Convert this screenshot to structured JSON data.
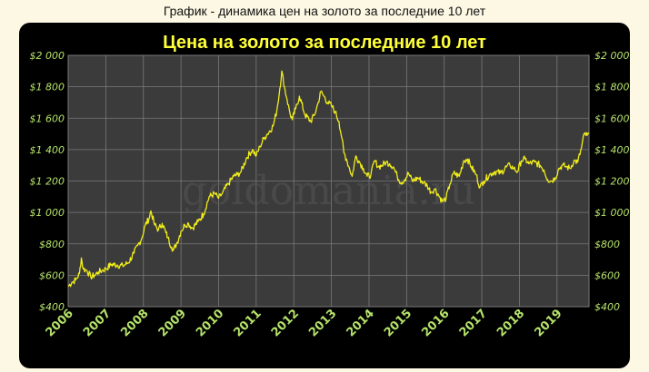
{
  "page": {
    "caption": "График - динамика цен на золото за последние 10 лет"
  },
  "watermark": "goldomania.ru",
  "colors": {
    "panel_bg": "#000000",
    "plot_bg": "#3b3b3b",
    "grid": "#7a7a7a",
    "line": "#f2ee1a",
    "title": "#ffff3a",
    "axis_text": "#b5e36a"
  },
  "chart_data": {
    "type": "line",
    "title": "Цена на золото за последние 10 лет",
    "xlabel": "",
    "ylabel": "",
    "xlim": [
      2006.0,
      2019.85
    ],
    "ylim": [
      400,
      2000
    ],
    "grid": true,
    "y_ticks": [
      2000,
      1800,
      1600,
      1400,
      1200,
      1000,
      800,
      600,
      400
    ],
    "y_tick_labels": [
      "$2 000",
      "$1 800",
      "$1 600",
      "$1 400",
      "$1 200",
      "$1 000",
      "$800",
      "$600",
      "$400"
    ],
    "y_axis_sides": "left-and-right",
    "x_tick_labels": [
      "2006",
      "2007",
      "2008",
      "2009",
      "2010",
      "2011",
      "2012",
      "2013",
      "2014",
      "2015",
      "2016",
      "2017",
      "2018",
      "2019"
    ],
    "series": [
      {
        "x": [
          2006.0,
          2006.1,
          2006.2,
          2006.3,
          2006.35,
          2006.4,
          2006.5,
          2006.6,
          2006.7,
          2006.8,
          2006.9,
          2007.0,
          2007.15,
          2007.3,
          2007.45,
          2007.6,
          2007.75,
          2007.85,
          2007.95,
          2008.05,
          2008.15,
          2008.2,
          2008.3,
          2008.4,
          2008.5,
          2008.6,
          2008.65,
          2008.75,
          2008.8,
          2008.9,
          2009.0,
          2009.1,
          2009.2,
          2009.3,
          2009.45,
          2009.6,
          2009.75,
          2009.9,
          2010.0,
          2010.1,
          2010.25,
          2010.4,
          2010.5,
          2010.6,
          2010.75,
          2010.9,
          2011.0,
          2011.1,
          2011.2,
          2011.3,
          2011.45,
          2011.55,
          2011.63,
          2011.68,
          2011.75,
          2011.82,
          2011.9,
          2011.96,
          2012.05,
          2012.15,
          2012.3,
          2012.45,
          2012.55,
          2012.65,
          2012.72,
          2012.8,
          2012.9,
          2013.0,
          2013.1,
          2013.2,
          2013.28,
          2013.33,
          2013.4,
          2013.48,
          2013.55,
          2013.65,
          2013.75,
          2013.85,
          2013.95,
          2014.05,
          2014.15,
          2014.25,
          2014.35,
          2014.45,
          2014.55,
          2014.65,
          2014.75,
          2014.85,
          2014.95,
          2015.05,
          2015.15,
          2015.3,
          2015.45,
          2015.55,
          2015.65,
          2015.75,
          2015.85,
          2015.95,
          2016.05,
          2016.15,
          2016.25,
          2016.4,
          2016.52,
          2016.62,
          2016.72,
          2016.85,
          2016.95,
          2017.05,
          2017.2,
          2017.35,
          2017.5,
          2017.65,
          2017.75,
          2017.85,
          2017.95,
          2018.05,
          2018.15,
          2018.25,
          2018.4,
          2018.55,
          2018.65,
          2018.75,
          2018.85,
          2018.95,
          2019.05,
          2019.15,
          2019.25,
          2019.35,
          2019.45,
          2019.55,
          2019.65,
          2019.72,
          2019.8,
          2019.85
        ],
        "y": [
          530,
          555,
          570,
          610,
          710,
          640,
          630,
          590,
          600,
          620,
          630,
          640,
          670,
          665,
          660,
          680,
          740,
          790,
          830,
          920,
          960,
          1010,
          920,
          890,
          930,
          870,
          840,
          780,
          760,
          810,
          880,
          920,
          930,
          900,
          940,
          990,
          1100,
          1120,
          1090,
          1120,
          1180,
          1230,
          1240,
          1260,
          1350,
          1400,
          1360,
          1420,
          1470,
          1500,
          1550,
          1650,
          1790,
          1900,
          1800,
          1720,
          1630,
          1590,
          1660,
          1740,
          1620,
          1580,
          1620,
          1700,
          1770,
          1740,
          1700,
          1680,
          1640,
          1580,
          1470,
          1380,
          1340,
          1280,
          1230,
          1360,
          1320,
          1280,
          1230,
          1240,
          1330,
          1290,
          1300,
          1320,
          1310,
          1290,
          1230,
          1190,
          1210,
          1250,
          1200,
          1220,
          1190,
          1170,
          1130,
          1150,
          1110,
          1070,
          1090,
          1180,
          1250,
          1230,
          1330,
          1340,
          1290,
          1240,
          1160,
          1200,
          1240,
          1260,
          1250,
          1290,
          1300,
          1280,
          1260,
          1330,
          1340,
          1310,
          1320,
          1300,
          1270,
          1210,
          1200,
          1220,
          1280,
          1300,
          1290,
          1280,
          1330,
          1320,
          1410,
          1500,
          1490,
          1500
        ]
      }
    ]
  }
}
